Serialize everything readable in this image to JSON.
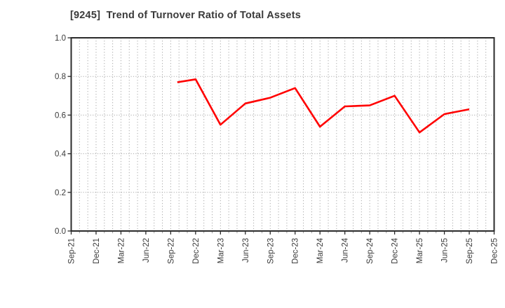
{
  "title": "[9245]  Trend of Turnover Ratio of Total Assets",
  "chart_data": {
    "type": "line",
    "title": "[9245]  Trend of Turnover Ratio of Total Assets",
    "x_tick_labels": [
      "Sep-21",
      "Dec-21",
      "Mar-22",
      "Jun-22",
      "Sep-22",
      "Dec-22",
      "Mar-23",
      "Jun-23",
      "Sep-23",
      "Dec-23",
      "Mar-24",
      "Jun-24",
      "Sep-24",
      "Dec-24",
      "Mar-25",
      "Jun-25",
      "Sep-25",
      "Dec-25"
    ],
    "y_tick_labels": [
      "0.0",
      "0.2",
      "0.4",
      "0.6",
      "0.8",
      "1.0"
    ],
    "ylim": [
      0.0,
      1.0
    ],
    "xlim_months": [
      0,
      51
    ],
    "x_tick_every_months": 3,
    "grid": {
      "vertical_every_months": 1,
      "horizontal_at": [
        0.2,
        0.4,
        0.6,
        0.8
      ],
      "style": "dotted"
    },
    "legend": "none",
    "series": [
      {
        "name": "Turnover Ratio of Total Assets",
        "color": "#ff0000",
        "points": [
          {
            "x_label": "Sep-22",
            "month": 12.8,
            "value": 0.77
          },
          {
            "x_label": "Dec-22",
            "month": 15,
            "value": 0.785
          },
          {
            "x_label": "Mar-23",
            "month": 18,
            "value": 0.55
          },
          {
            "x_label": "Jun-23",
            "month": 21,
            "value": 0.66
          },
          {
            "x_label": "Sep-23",
            "month": 24,
            "value": 0.69
          },
          {
            "x_label": "Dec-23",
            "month": 27,
            "value": 0.74
          },
          {
            "x_label": "Mar-24",
            "month": 30,
            "value": 0.54
          },
          {
            "x_label": "Jun-24",
            "month": 33,
            "value": 0.645
          },
          {
            "x_label": "Sep-24",
            "month": 36,
            "value": 0.65
          },
          {
            "x_label": "Dec-24",
            "month": 39,
            "value": 0.7
          },
          {
            "x_label": "Mar-25",
            "month": 42,
            "value": 0.51
          },
          {
            "x_label": "Jun-25",
            "month": 45,
            "value": 0.605
          },
          {
            "x_label": "Sep-25",
            "month": 48,
            "value": 0.63
          }
        ]
      }
    ]
  },
  "style": {
    "line_color": "#ff0000",
    "grid_color": "#ababab",
    "frame_color": "#2b2b2b",
    "text_color": "#3a3a3a",
    "minor_tick_color": "#999999",
    "background": "#ffffff"
  }
}
